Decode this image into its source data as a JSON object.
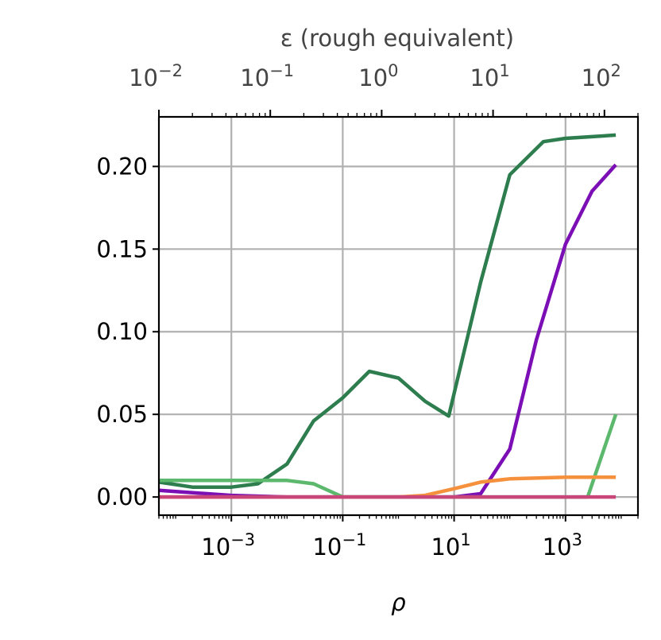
{
  "chart_data": {
    "type": "line",
    "xlabel": "ρ",
    "ylabel": "",
    "top_xlabel": "ε (rough equivalent)",
    "x_scale": "log",
    "xlim": [
      5e-05,
      20000
    ],
    "ylim": [
      -0.011,
      0.23
    ],
    "grid": true,
    "y_ticks": [
      {
        "value": 0.0,
        "label": "0.00"
      },
      {
        "value": 0.05,
        "label": "0.05"
      },
      {
        "value": 0.1,
        "label": "0.10"
      },
      {
        "value": 0.15,
        "label": "0.15"
      },
      {
        "value": 0.2,
        "label": "0.20"
      }
    ],
    "x_ticks": [
      {
        "value": 0.001,
        "base": "10",
        "exp": "−3"
      },
      {
        "value": 0.1,
        "base": "10",
        "exp": "−1"
      },
      {
        "value": 10,
        "base": "10",
        "exp": "1"
      },
      {
        "value": 1000,
        "base": "10",
        "exp": "3"
      }
    ],
    "top_axis": {
      "ticks": [
        {
          "eps": 0.01,
          "rho": 5e-05,
          "base": "10",
          "exp": "−2"
        },
        {
          "eps": 0.1,
          "rho": 0.005,
          "base": "10",
          "exp": "−1"
        },
        {
          "eps": 1,
          "rho": 0.5,
          "base": "10",
          "exp": "0"
        },
        {
          "eps": 10,
          "rho": 50,
          "base": "10",
          "exp": "1"
        },
        {
          "eps": 100,
          "rho": 5000,
          "base": "10",
          "exp": "2"
        }
      ]
    },
    "series": [
      {
        "color": "#2e7d4f",
        "x": [
          5e-05,
          0.0002,
          0.001,
          0.003,
          0.01,
          0.03,
          0.1,
          0.3,
          1,
          3,
          8,
          30,
          100,
          400,
          1000,
          3000,
          8000
        ],
        "y": [
          0.009,
          0.006,
          0.006,
          0.008,
          0.02,
          0.046,
          0.06,
          0.076,
          0.072,
          0.058,
          0.049,
          0.13,
          0.195,
          0.215,
          0.217,
          0.218,
          0.219
        ]
      },
      {
        "color": "#7b0fb5",
        "x": [
          5e-05,
          0.001,
          0.01,
          0.1,
          1,
          10,
          30,
          100,
          300,
          1000,
          3000,
          8000
        ],
        "y": [
          0.004,
          0.001,
          0.0,
          0.0,
          0.0,
          0.0,
          0.002,
          0.029,
          0.095,
          0.153,
          0.185,
          0.201
        ]
      },
      {
        "color": "#5cb86c",
        "x": [
          5e-05,
          0.003,
          0.01,
          0.03,
          0.1,
          1,
          10,
          100,
          1000,
          2500,
          8000
        ],
        "y": [
          0.01,
          0.01,
          0.01,
          0.008,
          0.0,
          0.0,
          0.0,
          0.0,
          0.0,
          0.0,
          0.05
        ]
      },
      {
        "color": "#f5913d",
        "x": [
          5e-05,
          0.001,
          0.01,
          0.1,
          0.3,
          1,
          3,
          10,
          30,
          100,
          1000,
          8000
        ],
        "y": [
          0.0,
          0.0,
          0.0,
          0.0,
          0.0,
          0.0,
          0.001,
          0.005,
          0.009,
          0.011,
          0.012,
          0.012
        ]
      },
      {
        "color": "#c8467a",
        "x": [
          5e-05,
          0.001,
          0.1,
          10,
          1000,
          8000
        ],
        "y": [
          0.0,
          0.0,
          0.0,
          0.0,
          0.0,
          0.0
        ]
      }
    ]
  }
}
